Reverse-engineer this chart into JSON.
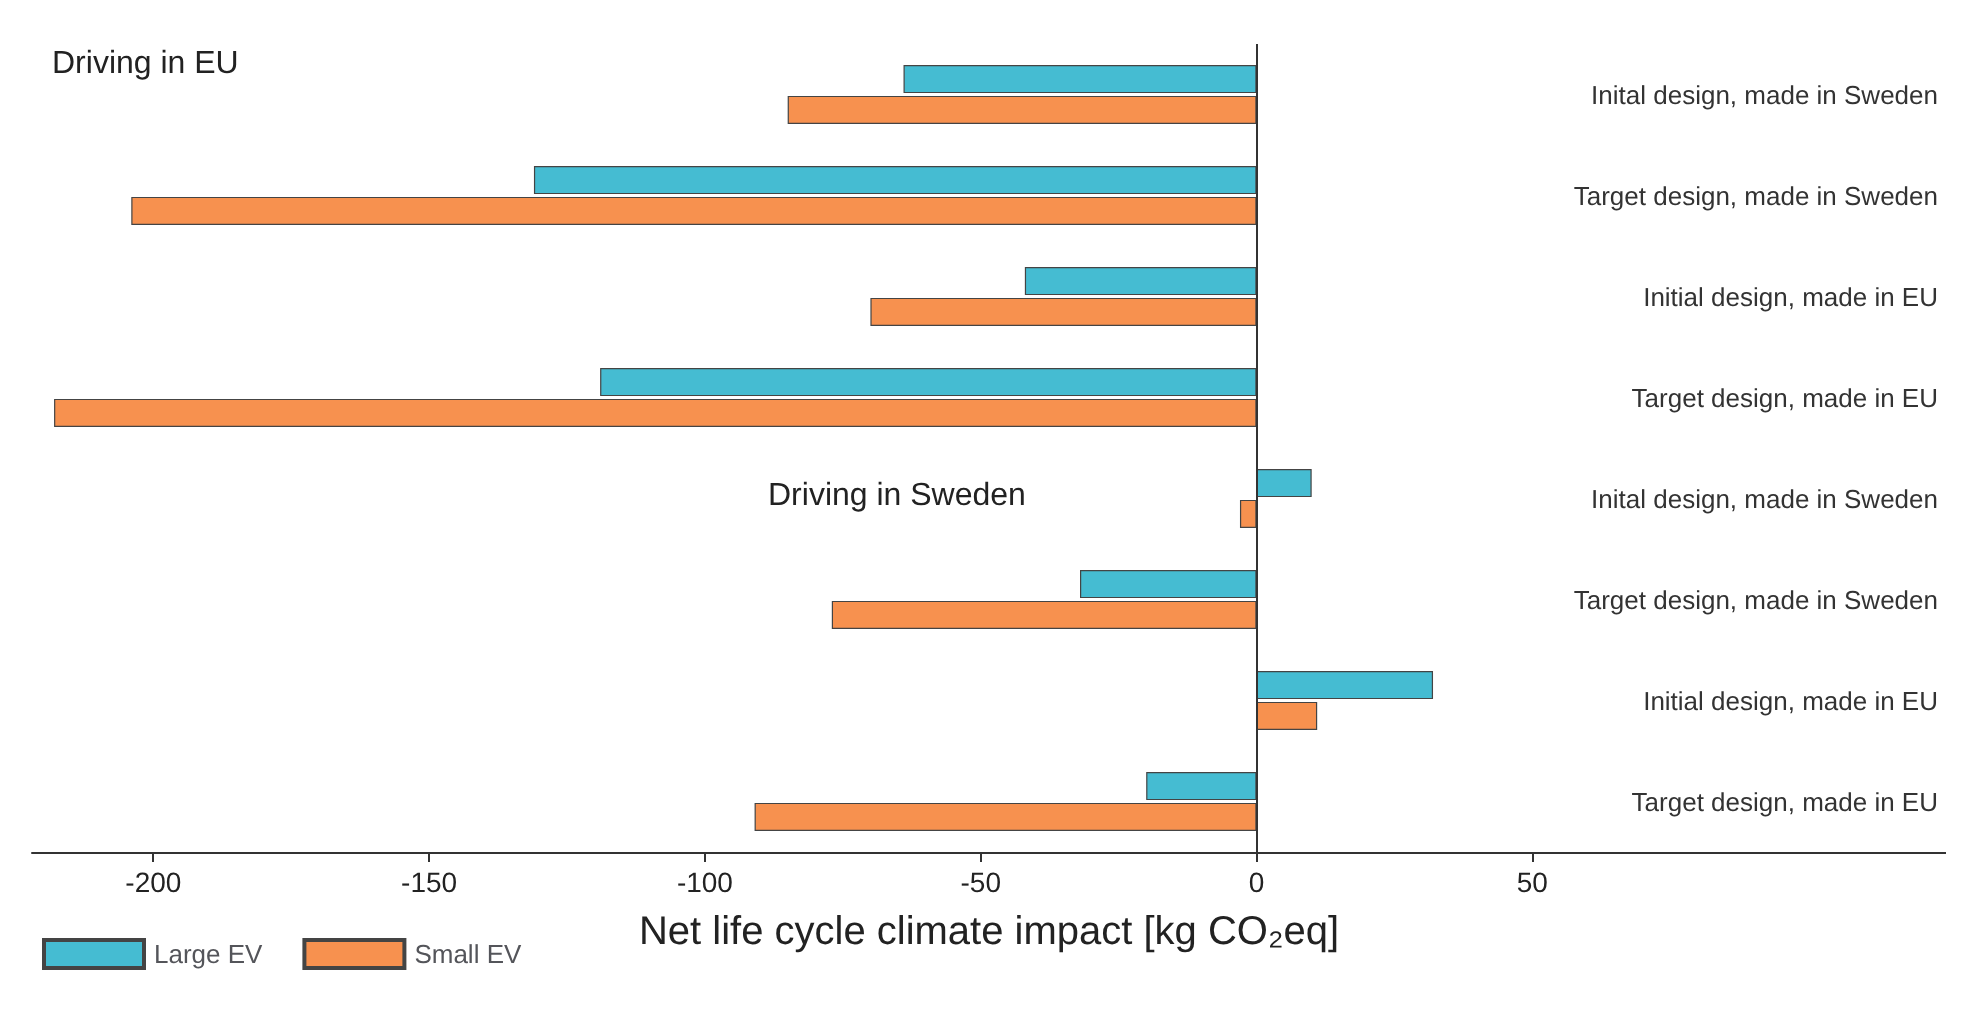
{
  "chart_data": {
    "type": "bar",
    "orientation": "horizontal",
    "categories": [
      "Inital design, made in Sweden",
      "Target design, made in Sweden",
      "Initial design, made in EU",
      "Target design, made in EU",
      "Inital design, made in Sweden",
      "Target design, made in Sweden",
      "Initial design, made in EU",
      "Target design, made in EU"
    ],
    "series": [
      {
        "name": "Large EV",
        "color": "#45bcd2",
        "values": [
          -64,
          -131,
          -42,
          -119,
          10,
          -32,
          32,
          -20
        ]
      },
      {
        "name": "Small EV",
        "color": "#f7914f",
        "values": [
          -85,
          -204,
          -70,
          -218,
          -3,
          -77,
          11,
          -91
        ]
      }
    ],
    "xlim": [
      -222,
      125
    ],
    "xticks": [
      -200,
      -150,
      -100,
      -50,
      0,
      50
    ],
    "xlabel": "Net life cycle climate impact [kg CO₂eq]",
    "annotations": [
      "Driving in EU",
      "Driving in Sweden"
    ],
    "legend": "bottom left",
    "ref_lines": [
      {
        "axis": "x",
        "value": 0,
        "color": "#333333"
      }
    ]
  }
}
